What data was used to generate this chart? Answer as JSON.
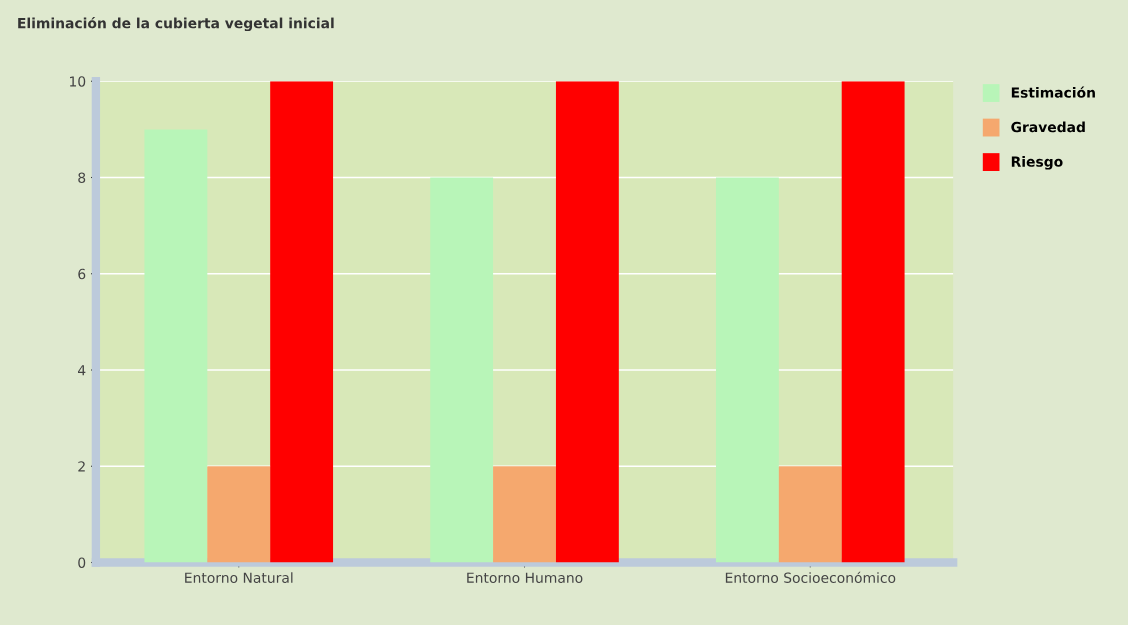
{
  "chart_data": {
    "type": "bar",
    "title": "Eliminación de la cubierta vegetal inicial",
    "categories": [
      "Entorno Natural",
      "Entorno Humano",
      "Entorno Socioeconómico"
    ],
    "series": [
      {
        "name": "Estimación",
        "color": "#b8f5b8",
        "values": [
          9,
          8,
          8
        ]
      },
      {
        "name": "Gravedad",
        "color": "#f5a86e",
        "values": [
          2,
          2,
          2
        ]
      },
      {
        "name": "Riesgo",
        "color": "#ff0000",
        "values": [
          10,
          10,
          10
        ]
      }
    ],
    "ylim": [
      0,
      10
    ],
    "yticks": [
      0,
      2,
      4,
      6,
      8,
      10
    ],
    "grid": "y",
    "legend": "top right"
  }
}
